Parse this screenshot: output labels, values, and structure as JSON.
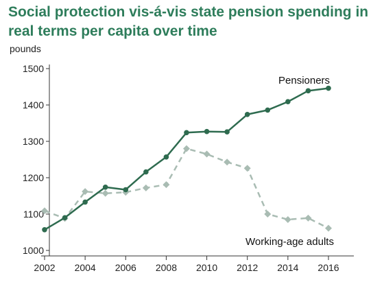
{
  "chart_data": {
    "type": "line",
    "title": "Social protection vis-á-vis state pension spending in real terms per capita over time",
    "ylabel": "pounds",
    "xlabel": "",
    "x": [
      2002,
      2003,
      2004,
      2005,
      2006,
      2007,
      2008,
      2009,
      2010,
      2011,
      2012,
      2013,
      2014,
      2015,
      2016
    ],
    "xlim": [
      2002,
      2017
    ],
    "ylim": [
      1000,
      1500
    ],
    "x_ticks": [
      "2002",
      "2004",
      "2006",
      "2008",
      "2010",
      "2012",
      "2014",
      "2016"
    ],
    "y_ticks": [
      "1000",
      "1100",
      "1200",
      "1300",
      "1400",
      "1500"
    ],
    "grid": false,
    "legend": "direct-labels",
    "series": [
      {
        "name": "Pensioners",
        "color": "#2e6b4f",
        "style": "solid",
        "marker": "circle",
        "values": [
          1057,
          1090,
          1133,
          1174,
          1167,
          1216,
          1257,
          1324,
          1327,
          1326,
          1374,
          1386,
          1409,
          1439,
          1446
        ]
      },
      {
        "name": "Working-age adults",
        "color": "#a9bcb3",
        "style": "dashed",
        "marker": "diamond",
        "values": [
          1109,
          1088,
          1162,
          1157,
          1160,
          1172,
          1181,
          1280,
          1265,
          1243,
          1226,
          1100,
          1085,
          1089,
          1061
        ]
      }
    ]
  }
}
